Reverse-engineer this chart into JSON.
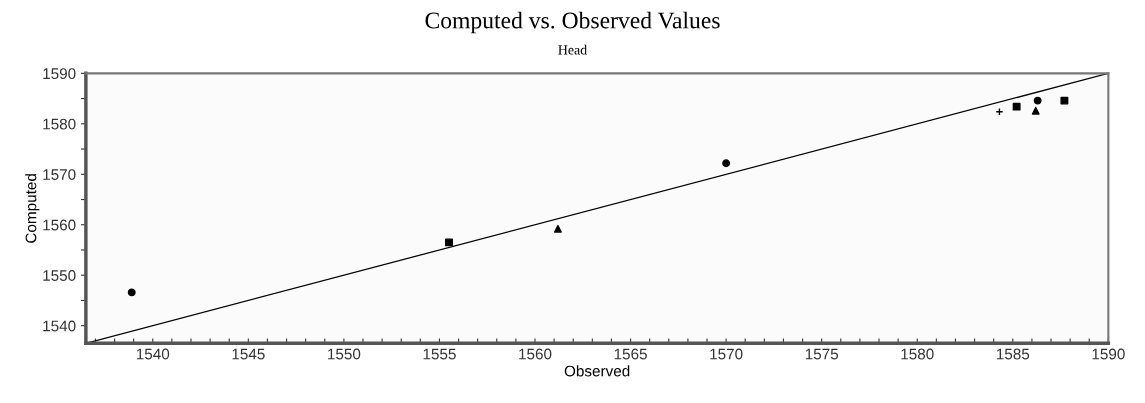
{
  "chart_data": {
    "type": "scatter",
    "title": "Computed vs. Observed Values",
    "subtitle": "Head",
    "xlabel": "Observed",
    "ylabel": "Computed",
    "xlim": [
      1536.5,
      1590
    ],
    "ylim": [
      1536.5,
      1590
    ],
    "xticks": [
      {
        "value": 1537,
        "label": null
      },
      {
        "value": 1538,
        "label": null
      },
      {
        "value": 1539,
        "label": null
      },
      1540,
      {
        "value": 1541,
        "label": null
      },
      {
        "value": 1542,
        "label": null
      },
      {
        "value": 1543,
        "label": null
      },
      {
        "value": 1544,
        "label": null
      },
      1545,
      {
        "value": 1546,
        "label": null
      },
      {
        "value": 1547,
        "label": null
      },
      {
        "value": 1548,
        "label": null
      },
      {
        "value": 1549,
        "label": null
      },
      1550,
      {
        "value": 1551,
        "label": null
      },
      {
        "value": 1552,
        "label": null
      },
      {
        "value": 1553,
        "label": null
      },
      {
        "value": 1554,
        "label": null
      },
      1555,
      {
        "value": 1556,
        "label": null
      },
      {
        "value": 1557,
        "label": null
      },
      {
        "value": 1558,
        "label": null
      },
      {
        "value": 1559,
        "label": null
      },
      1560,
      {
        "value": 1561,
        "label": null
      },
      {
        "value": 1562,
        "label": null
      },
      {
        "value": 1563,
        "label": null
      },
      {
        "value": 1564,
        "label": null
      },
      1565,
      {
        "value": 1566,
        "label": null
      },
      {
        "value": 1567,
        "label": null
      },
      {
        "value": 1568,
        "label": null
      },
      {
        "value": 1569,
        "label": null
      },
      1570,
      {
        "value": 1571,
        "label": null
      },
      {
        "value": 1572,
        "label": null
      },
      {
        "value": 1573,
        "label": null
      },
      {
        "value": 1574,
        "label": null
      },
      1575,
      {
        "value": 1576,
        "label": null
      },
      {
        "value": 1577,
        "label": null
      },
      {
        "value": 1578,
        "label": null
      },
      {
        "value": 1579,
        "label": null
      },
      1580,
      {
        "value": 1581,
        "label": null
      },
      {
        "value": 1582,
        "label": null
      },
      {
        "value": 1583,
        "label": null
      },
      {
        "value": 1584,
        "label": null
      },
      1585,
      {
        "value": 1586,
        "label": null
      },
      {
        "value": 1587,
        "label": null
      },
      {
        "value": 1588,
        "label": null
      },
      {
        "value": 1589,
        "label": null
      },
      1590
    ],
    "yticks": [
      1540,
      {
        "value": 1545,
        "label": null
      },
      1550,
      {
        "value": 1555,
        "label": null
      },
      1560,
      {
        "value": 1565,
        "label": null
      },
      1570,
      {
        "value": 1575,
        "label": null
      },
      1580,
      {
        "value": 1585,
        "label": null
      },
      1590
    ],
    "grid": false,
    "legend": false,
    "series": [
      {
        "type": "line",
        "color": "#000000",
        "marker": "none",
        "x": [
          1536.5,
          1590
        ],
        "values": [
          1536.5,
          1590
        ]
      },
      {
        "color": "#000000",
        "marker": "circle",
        "x": [
          1538.9
        ],
        "values": [
          1546.6
        ]
      },
      {
        "color": "#000000",
        "marker": "square",
        "x": [
          1555.5
        ],
        "values": [
          1556.5
        ]
      },
      {
        "color": "#000000",
        "marker": "triangle",
        "x": [
          1561.2
        ],
        "values": [
          1559.2
        ]
      },
      {
        "color": "#000000",
        "marker": "circle",
        "x": [
          1570.0
        ],
        "values": [
          1572.2
        ]
      },
      {
        "color": "#000000",
        "marker": "cross",
        "x": [
          1584.3
        ],
        "values": [
          1582.4
        ]
      },
      {
        "color": "#000000",
        "marker": "square",
        "x": [
          1585.2
        ],
        "values": [
          1583.4
        ]
      },
      {
        "color": "#000000",
        "marker": "circle",
        "x": [
          1586.3
        ],
        "values": [
          1584.6
        ]
      },
      {
        "color": "#000000",
        "marker": "triangle",
        "x": [
          1586.2
        ],
        "values": [
          1582.6
        ]
      },
      {
        "color": "#000000",
        "marker": "square",
        "x": [
          1587.7
        ],
        "values": [
          1584.6
        ]
      }
    ]
  }
}
